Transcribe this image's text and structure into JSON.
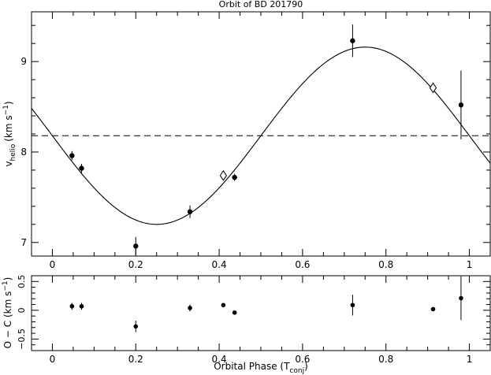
{
  "chart_data": [
    {
      "type": "scatter",
      "title": "Orbit of BD 201790",
      "ylabel_main": "v",
      "ylabel_sub": "helio",
      "ylabel_units": "(km s",
      "ylabel_exp": "−1",
      "ylabel_close": ")",
      "xlim": [
        -0.05,
        1.05
      ],
      "ylim": [
        6.85,
        9.55
      ],
      "xticks": [
        0,
        0.2,
        0.4,
        0.6,
        0.8,
        1
      ],
      "xtick_labels": [
        "0",
        "0.2",
        "0.4",
        "0.6",
        "0.8",
        "1"
      ],
      "yticks": [
        7,
        8,
        9
      ],
      "ytick_labels": [
        "7",
        "8",
        "9"
      ],
      "systemic_velocity": 8.18,
      "model": {
        "gamma": 8.18,
        "K": 0.98,
        "phase_of_minimum": 0.25,
        "phase_of_maximum": 0.75
      },
      "series": [
        {
          "marker": "circle",
          "points": [
            {
              "x": 0.047,
              "y": 7.96,
              "err": 0.05
            },
            {
              "x": 0.07,
              "y": 7.82,
              "err": 0.05
            },
            {
              "x": 0.2,
              "y": 6.96,
              "err": 0.1
            },
            {
              "x": 0.33,
              "y": 7.34,
              "err": 0.07
            },
            {
              "x": 0.437,
              "y": 7.72,
              "err": 0.04
            },
            {
              "x": 0.72,
              "y": 9.23,
              "err": 0.18
            },
            {
              "x": 0.98,
              "y": 8.52,
              "err": 0.38
            }
          ]
        },
        {
          "marker": "diamond",
          "points": [
            {
              "x": 0.41,
              "y": 7.74,
              "err": 0
            },
            {
              "x": 0.913,
              "y": 8.71,
              "err": 0.04
            }
          ]
        }
      ]
    },
    {
      "type": "scatter",
      "xlabel_main": "Orbital Phase (T",
      "xlabel_sub": "conj",
      "xlabel_close": ")",
      "ylabel_main": "O − C (km s",
      "ylabel_exp": "−1",
      "ylabel_close": ")",
      "xlim": [
        -0.05,
        1.05
      ],
      "ylim": [
        -0.7,
        0.6
      ],
      "xticks": [
        0,
        0.2,
        0.4,
        0.6,
        0.8,
        1
      ],
      "xtick_labels": [
        "0",
        "0.2",
        "0.4",
        "0.6",
        "0.8",
        "1"
      ],
      "yticks": [
        -0.5,
        0,
        0.5
      ],
      "ytick_labels": [
        "−0.5",
        "0",
        "0.5"
      ],
      "points": [
        {
          "x": 0.047,
          "y": 0.07,
          "err": 0.06
        },
        {
          "x": 0.07,
          "y": 0.07,
          "err": 0.06
        },
        {
          "x": 0.2,
          "y": -0.28,
          "err": 0.1
        },
        {
          "x": 0.33,
          "y": 0.04,
          "err": 0.06
        },
        {
          "x": 0.41,
          "y": 0.09,
          "err": 0.0
        },
        {
          "x": 0.437,
          "y": -0.04,
          "err": 0.0
        },
        {
          "x": 0.72,
          "y": 0.09,
          "err": 0.18
        },
        {
          "x": 0.913,
          "y": 0.02,
          "err": 0.0
        },
        {
          "x": 0.98,
          "y": 0.21,
          "err": 0.38
        }
      ]
    }
  ]
}
